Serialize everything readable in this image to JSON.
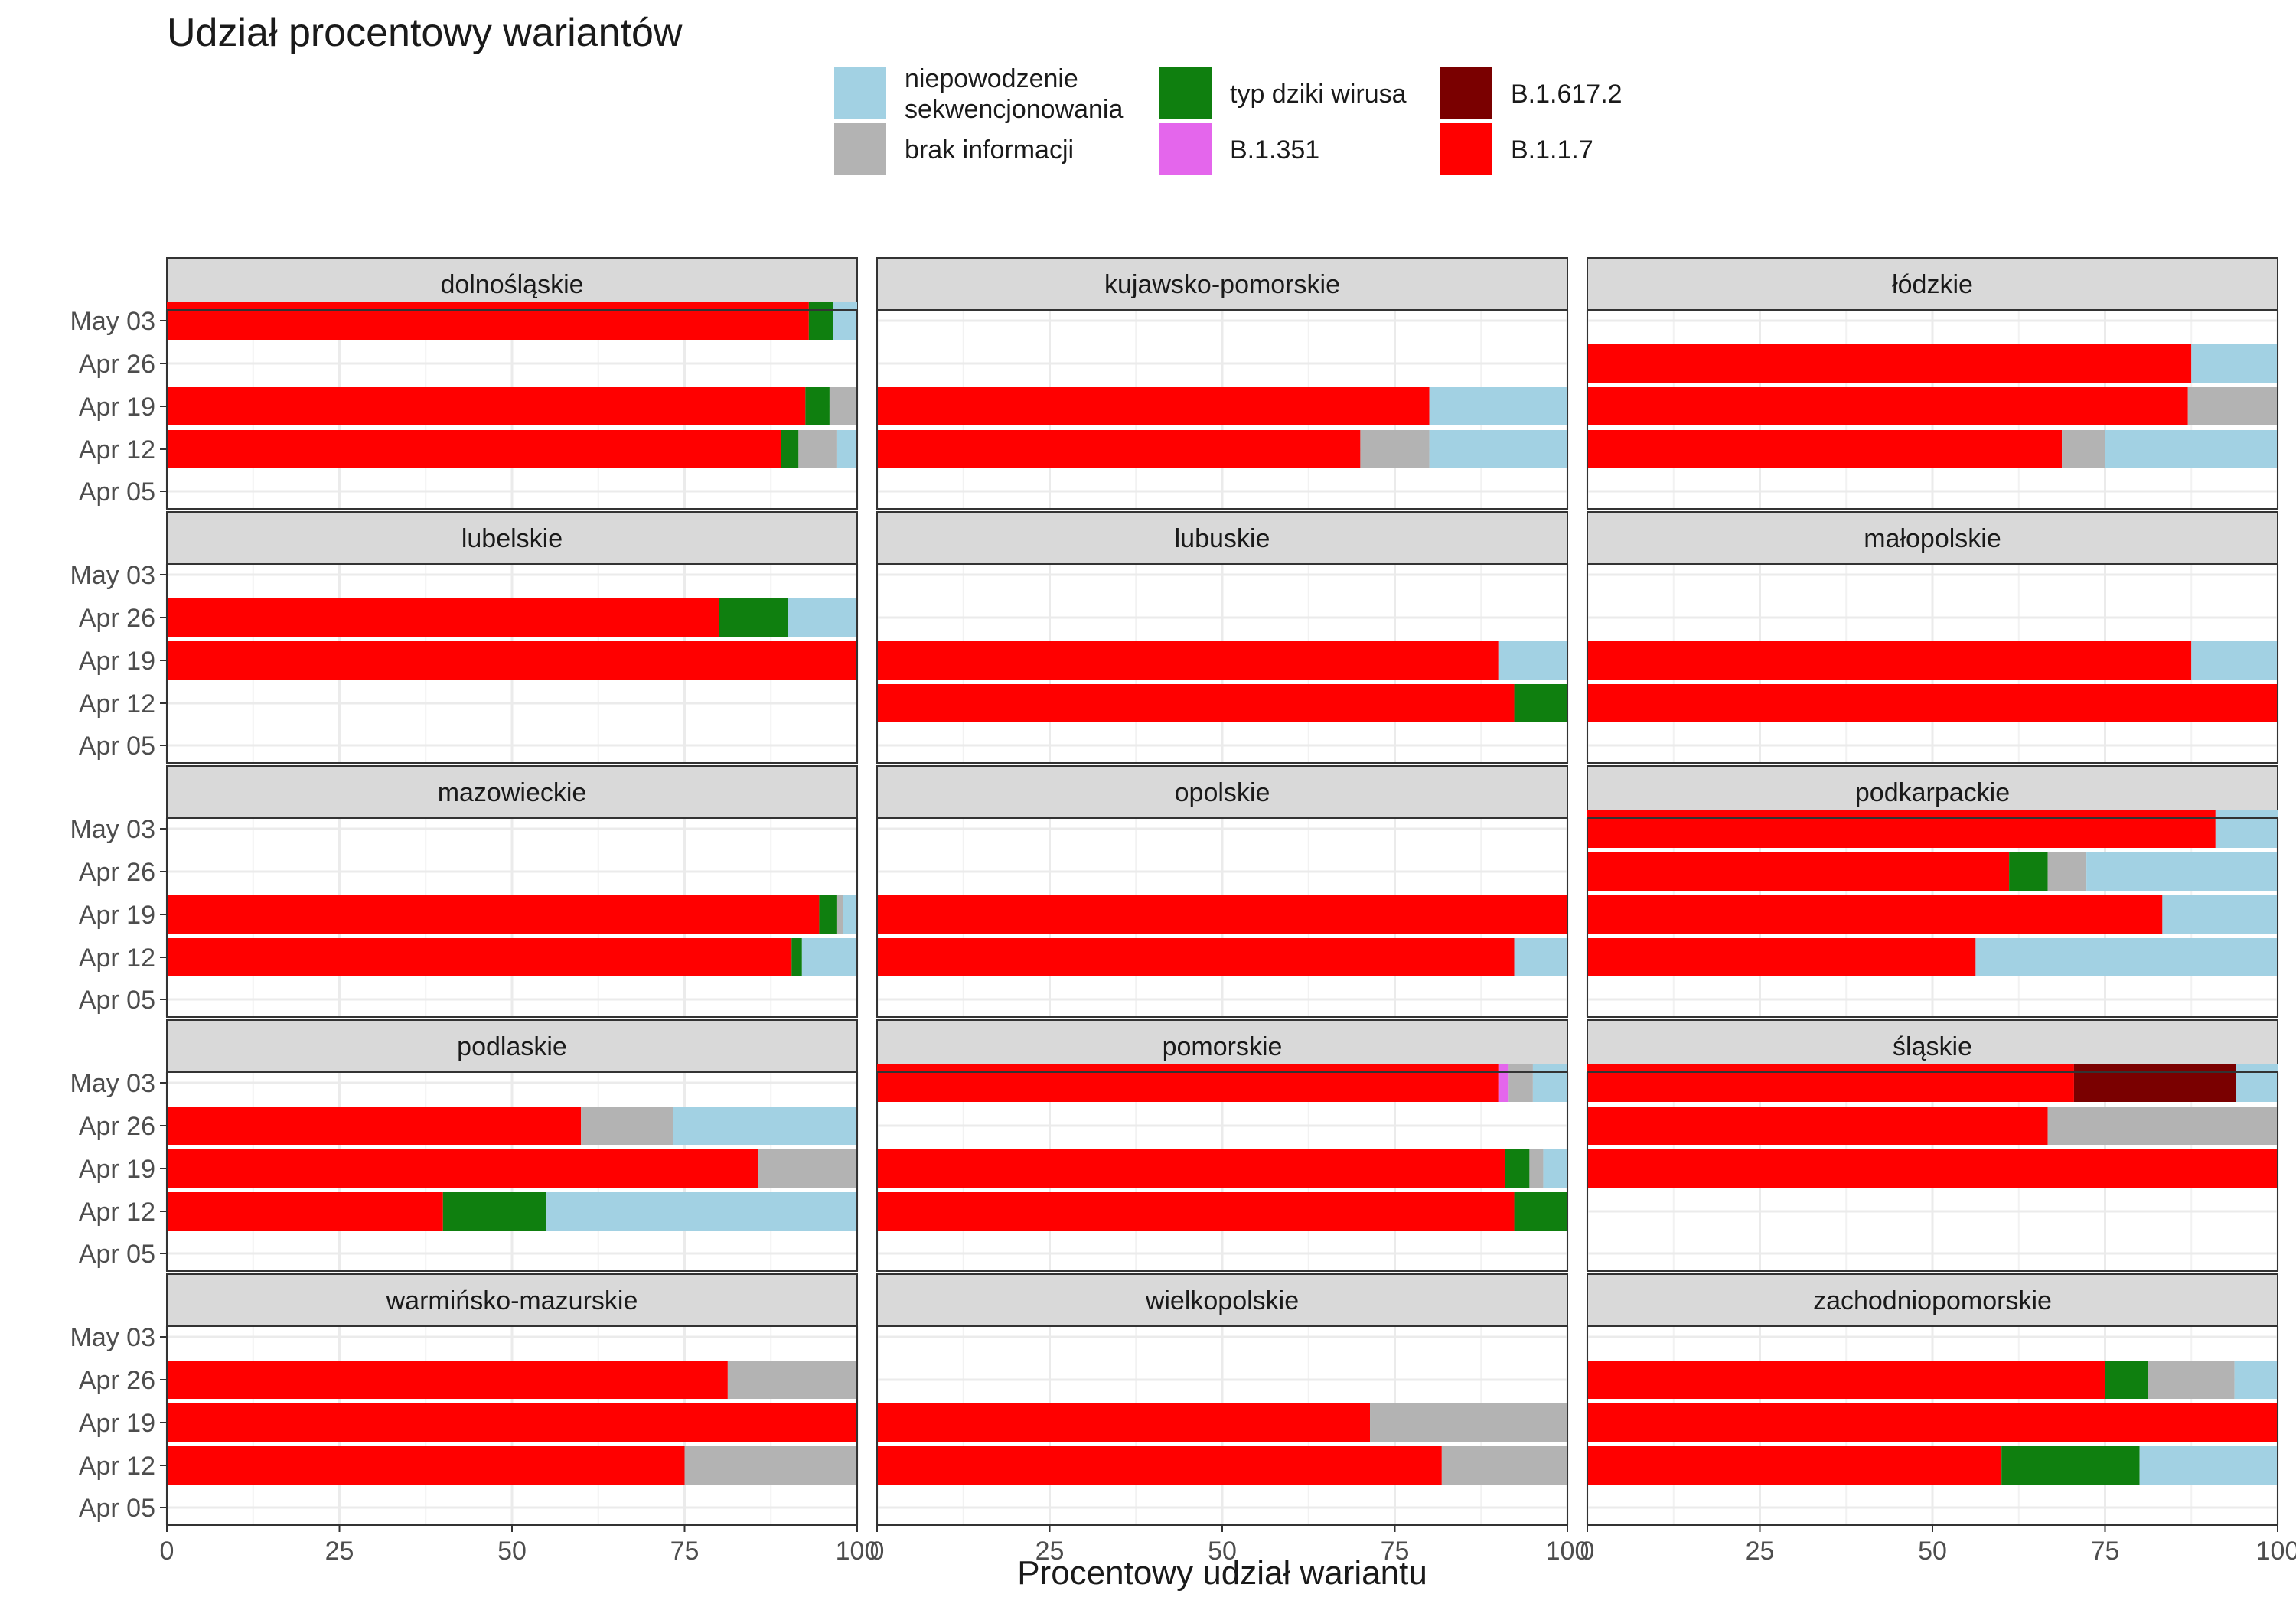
{
  "title": "Udział procentowy wariantów",
  "colors": {
    "niepowodzenie sekwencjonowania": "#a2d1e3",
    "brak informacji": "#b3b3b3",
    "typ dziki wirusa": "#0f7f0f",
    "B.1.351": "#e466ec",
    "B.1.617.2": "#7a0000",
    "B.1.1.7": "#ff0000"
  },
  "legend": [
    {
      "key": "niepowodzenie sekwencjonowania",
      "lines": [
        "niepowodzenie",
        "sekwencjonowania"
      ]
    },
    {
      "key": "brak informacji",
      "lines": [
        "brak informacji"
      ]
    },
    {
      "key": "typ dziki wirusa",
      "lines": [
        "typ dziki wirusa"
      ]
    },
    {
      "key": "B.1.351",
      "lines": [
        "B.1.351"
      ]
    },
    {
      "key": "B.1.617.2",
      "lines": [
        "B.1.617.2"
      ]
    },
    {
      "key": "B.1.1.7",
      "lines": [
        "B.1.1.7"
      ]
    }
  ],
  "chart_data": {
    "type": "bar",
    "orientation": "horizontal",
    "stacked": true,
    "title": "Udział procentowy wariantów",
    "xlabel": "Procentowy udział wariantu",
    "ylabel": "",
    "xlim": [
      0,
      100
    ],
    "x_ticks": [
      "0",
      "25",
      "50",
      "75",
      "100"
    ],
    "y_categories": [
      "Apr 05",
      "Apr 12",
      "Apr 19",
      "Apr 26",
      "May 03"
    ],
    "stack_order": [
      "B.1.1.7",
      "B.1.617.2",
      "B.1.351",
      "typ dziki wirusa",
      "brak informacji",
      "niepowodzenie sekwencjonowania"
    ],
    "legend_position": "top",
    "grid": true,
    "panels": [
      {
        "name": "dolnośląskie",
        "bars": [
          {
            "week": "Apr 12",
            "B.1.1.7": 89,
            "typ dziki wirusa": 2.5,
            "brak informacji": 5.5,
            "niepowodzenie sekwencjonowania": 3
          },
          {
            "week": "Apr 19",
            "B.1.1.7": 92.5,
            "typ dziki wirusa": 3.5,
            "brak informacji": 4
          },
          {
            "week": "May 03",
            "B.1.1.7": 93,
            "typ dziki wirusa": 3.5,
            "niepowodzenie sekwencjonowania": 3.5
          }
        ]
      },
      {
        "name": "kujawsko-pomorskie",
        "bars": [
          {
            "week": "Apr 12",
            "B.1.1.7": 70,
            "brak informacji": 10,
            "niepowodzenie sekwencjonowania": 20
          },
          {
            "week": "Apr 19",
            "B.1.1.7": 80,
            "niepowodzenie sekwencjonowania": 20
          }
        ]
      },
      {
        "name": "łódzkie",
        "bars": [
          {
            "week": "Apr 12",
            "B.1.1.7": 68.75,
            "brak informacji": 6.25,
            "niepowodzenie sekwencjonowania": 25
          },
          {
            "week": "Apr 19",
            "B.1.1.7": 87,
            "brak informacji": 13
          },
          {
            "week": "Apr 26",
            "B.1.1.7": 87.5,
            "niepowodzenie sekwencjonowania": 12.5
          }
        ]
      },
      {
        "name": "lubelskie",
        "bars": [
          {
            "week": "Apr 19",
            "B.1.1.7": 100
          },
          {
            "week": "Apr 26",
            "B.1.1.7": 80,
            "typ dziki wirusa": 10,
            "niepowodzenie sekwencjonowania": 10
          }
        ]
      },
      {
        "name": "lubuskie",
        "bars": [
          {
            "week": "Apr 12",
            "B.1.1.7": 92.3,
            "typ dziki wirusa": 7.7
          },
          {
            "week": "Apr 19",
            "B.1.1.7": 90,
            "niepowodzenie sekwencjonowania": 10
          }
        ]
      },
      {
        "name": "małopolskie",
        "bars": [
          {
            "week": "Apr 12",
            "B.1.1.7": 100
          },
          {
            "week": "Apr 19",
            "B.1.1.7": 87.5,
            "niepowodzenie sekwencjonowania": 12.5
          }
        ]
      },
      {
        "name": "mazowieckie",
        "bars": [
          {
            "week": "Apr 12",
            "B.1.1.7": 90.5,
            "typ dziki wirusa": 1.5,
            "niepowodzenie sekwencjonowania": 8
          },
          {
            "week": "Apr 19",
            "B.1.1.7": 94.5,
            "typ dziki wirusa": 2.5,
            "brak informacji": 1,
            "niepowodzenie sekwencjonowania": 2
          }
        ]
      },
      {
        "name": "opolskie",
        "bars": [
          {
            "week": "Apr 12",
            "B.1.1.7": 92.3,
            "niepowodzenie sekwencjonowania": 7.7
          },
          {
            "week": "Apr 19",
            "B.1.1.7": 100
          }
        ]
      },
      {
        "name": "podkarpackie",
        "bars": [
          {
            "week": "Apr 12",
            "B.1.1.7": 56.25,
            "niepowodzenie sekwencjonowania": 43.75
          },
          {
            "week": "Apr 19",
            "B.1.1.7": 83.3,
            "niepowodzenie sekwencjonowania": 16.7
          },
          {
            "week": "Apr 26",
            "B.1.1.7": 61.1,
            "typ dziki wirusa": 5.6,
            "brak informacji": 5.6,
            "niepowodzenie sekwencjonowania": 27.7
          },
          {
            "week": "May 03",
            "B.1.1.7": 91,
            "niepowodzenie sekwencjonowania": 9
          }
        ]
      },
      {
        "name": "podlaskie",
        "bars": [
          {
            "week": "Apr 12",
            "B.1.1.7": 40,
            "typ dziki wirusa": 15,
            "niepowodzenie sekwencjonowania": 45
          },
          {
            "week": "Apr 19",
            "B.1.1.7": 85.7,
            "brak informacji": 14.3
          },
          {
            "week": "Apr 26",
            "B.1.1.7": 60,
            "brak informacji": 13.3,
            "niepowodzenie sekwencjonowania": 26.7
          }
        ]
      },
      {
        "name": "pomorskie",
        "bars": [
          {
            "week": "Apr 12",
            "B.1.1.7": 92.3,
            "typ dziki wirusa": 7.7
          },
          {
            "week": "Apr 19",
            "B.1.1.7": 91,
            "typ dziki wirusa": 3.5,
            "brak informacji": 2,
            "niepowodzenie sekwencjonowania": 3.5
          },
          {
            "week": "May 03",
            "B.1.1.7": 90,
            "B.1.351": 1.5,
            "brak informacji": 3.5,
            "niepowodzenie sekwencjonowania": 5
          }
        ]
      },
      {
        "name": "śląskie",
        "bars": [
          {
            "week": "Apr 19",
            "B.1.1.7": 100
          },
          {
            "week": "Apr 26",
            "B.1.1.7": 66.7,
            "brak informacji": 33.3
          },
          {
            "week": "May 03",
            "B.1.1.7": 70.5,
            "B.1.617.2": 23.5,
            "niepowodzenie sekwencjonowania": 6
          }
        ]
      },
      {
        "name": "warmińsko-mazurskie",
        "bars": [
          {
            "week": "Apr 12",
            "B.1.1.7": 75,
            "brak informacji": 25
          },
          {
            "week": "Apr 19",
            "B.1.1.7": 100
          },
          {
            "week": "Apr 26",
            "B.1.1.7": 81.25,
            "brak informacji": 18.75
          }
        ]
      },
      {
        "name": "wielkopolskie",
        "bars": [
          {
            "week": "Apr 12",
            "B.1.1.7": 81.8,
            "brak informacji": 18.2
          },
          {
            "week": "Apr 19",
            "B.1.1.7": 71.4,
            "brak informacji": 28.6
          }
        ]
      },
      {
        "name": "zachodniopomorskie",
        "bars": [
          {
            "week": "Apr 12",
            "B.1.1.7": 60,
            "typ dziki wirusa": 20,
            "niepowodzenie sekwencjonowania": 20
          },
          {
            "week": "Apr 19",
            "B.1.1.7": 100
          },
          {
            "week": "Apr 26",
            "B.1.1.7": 75,
            "typ dziki wirusa": 6.25,
            "brak informacji": 12.5,
            "niepowodzenie sekwencjonowania": 6.25
          }
        ]
      }
    ]
  }
}
